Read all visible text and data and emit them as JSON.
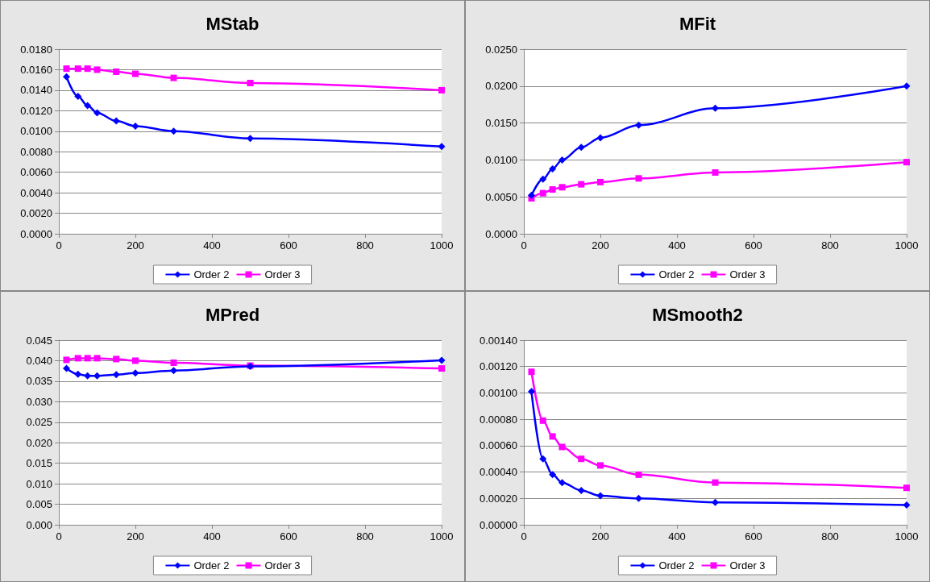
{
  "chart_data": [
    {
      "type": "line",
      "title": "MStab",
      "x": [
        20,
        50,
        75,
        100,
        150,
        200,
        300,
        500,
        1000
      ],
      "xlim": [
        0,
        1000
      ],
      "xticks": [
        0,
        200,
        400,
        600,
        800,
        1000
      ],
      "ylim": [
        0,
        0.018
      ],
      "yticks": [
        {
          "value": 0,
          "label": "0.0000"
        },
        {
          "value": 0.002,
          "label": "0.0020"
        },
        {
          "value": 0.004,
          "label": "0.0040"
        },
        {
          "value": 0.006,
          "label": "0.0060"
        },
        {
          "value": 0.008,
          "label": "0.0080"
        },
        {
          "value": 0.01,
          "label": "0.0100"
        },
        {
          "value": 0.012,
          "label": "0.0120"
        },
        {
          "value": 0.014,
          "label": "0.0140"
        },
        {
          "value": 0.016,
          "label": "0.0160"
        },
        {
          "value": 0.018,
          "label": "0.0180"
        }
      ],
      "grid": "y",
      "legend": "bottom",
      "series": [
        {
          "name": "Order 2",
          "color": "#0000ff",
          "marker": "diamond",
          "values": [
            0.0153,
            0.0134,
            0.0125,
            0.0118,
            0.011,
            0.0105,
            0.01,
            0.0093,
            0.0085
          ]
        },
        {
          "name": "Order 3",
          "color": "#ff00ff",
          "marker": "square",
          "values": [
            0.0161,
            0.0161,
            0.0161,
            0.016,
            0.0158,
            0.0156,
            0.0152,
            0.0147,
            0.014
          ]
        }
      ]
    },
    {
      "type": "line",
      "title": "MFit",
      "x": [
        20,
        50,
        75,
        100,
        150,
        200,
        300,
        500,
        1000
      ],
      "xlim": [
        0,
        1000
      ],
      "xticks": [
        0,
        200,
        400,
        600,
        800,
        1000
      ],
      "ylim": [
        0,
        0.025
      ],
      "yticks": [
        {
          "value": 0,
          "label": "0.0000"
        },
        {
          "value": 0.005,
          "label": "0.0050"
        },
        {
          "value": 0.01,
          "label": "0.0100"
        },
        {
          "value": 0.015,
          "label": "0.0150"
        },
        {
          "value": 0.02,
          "label": "0.0200"
        },
        {
          "value": 0.025,
          "label": "0.0250"
        }
      ],
      "grid": "y",
      "legend": "bottom",
      "series": [
        {
          "name": "Order 2",
          "color": "#0000ff",
          "marker": "diamond",
          "values": [
            0.0052,
            0.0074,
            0.0088,
            0.01,
            0.0117,
            0.013,
            0.0147,
            0.017,
            0.02
          ]
        },
        {
          "name": "Order 3",
          "color": "#ff00ff",
          "marker": "square",
          "values": [
            0.0048,
            0.0055,
            0.006,
            0.0063,
            0.0067,
            0.007,
            0.0075,
            0.0083,
            0.0097
          ]
        }
      ]
    },
    {
      "type": "line",
      "title": "MPred",
      "x": [
        20,
        50,
        75,
        100,
        150,
        200,
        300,
        500,
        1000
      ],
      "xlim": [
        0,
        1000
      ],
      "xticks": [
        0,
        200,
        400,
        600,
        800,
        1000
      ],
      "ylim": [
        0,
        0.045
      ],
      "yticks": [
        {
          "value": 0,
          "label": "0.000"
        },
        {
          "value": 0.005,
          "label": "0.005"
        },
        {
          "value": 0.01,
          "label": "0.010"
        },
        {
          "value": 0.015,
          "label": "0.015"
        },
        {
          "value": 0.02,
          "label": "0.020"
        },
        {
          "value": 0.025,
          "label": "0.025"
        },
        {
          "value": 0.03,
          "label": "0.030"
        },
        {
          "value": 0.035,
          "label": "0.035"
        },
        {
          "value": 0.04,
          "label": "0.040"
        },
        {
          "value": 0.045,
          "label": "0.045"
        }
      ],
      "grid": "y",
      "legend": "bottom",
      "series": [
        {
          "name": "Order 2",
          "color": "#0000ff",
          "marker": "diamond",
          "values": [
            0.0381,
            0.0367,
            0.0363,
            0.0363,
            0.0366,
            0.037,
            0.0376,
            0.0386,
            0.0401
          ]
        },
        {
          "name": "Order 3",
          "color": "#ff00ff",
          "marker": "square",
          "values": [
            0.0402,
            0.0406,
            0.0406,
            0.0406,
            0.0404,
            0.04,
            0.0395,
            0.0388,
            0.0381
          ]
        }
      ]
    },
    {
      "type": "line",
      "title": "MSmooth2",
      "x": [
        20,
        50,
        75,
        100,
        150,
        200,
        300,
        500,
        1000
      ],
      "xlim": [
        0,
        1000
      ],
      "xticks": [
        0,
        200,
        400,
        600,
        800,
        1000
      ],
      "ylim": [
        0,
        0.0014
      ],
      "yticks": [
        {
          "value": 0,
          "label": "0.00000"
        },
        {
          "value": 0.0002,
          "label": "0.00020"
        },
        {
          "value": 0.0004,
          "label": "0.00040"
        },
        {
          "value": 0.0006,
          "label": "0.00060"
        },
        {
          "value": 0.0008,
          "label": "0.00080"
        },
        {
          "value": 0.001,
          "label": "0.00100"
        },
        {
          "value": 0.0012,
          "label": "0.00120"
        },
        {
          "value": 0.0014,
          "label": "0.00140"
        }
      ],
      "grid": "y",
      "legend": "bottom",
      "series": [
        {
          "name": "Order 2",
          "color": "#0000ff",
          "marker": "diamond",
          "values": [
            0.00101,
            0.0005,
            0.00038,
            0.00032,
            0.00026,
            0.00022,
            0.0002,
            0.00017,
            0.00015
          ]
        },
        {
          "name": "Order 3",
          "color": "#ff00ff",
          "marker": "square",
          "values": [
            0.00116,
            0.00079,
            0.00067,
            0.00059,
            0.0005,
            0.00045,
            0.00038,
            0.00032,
            0.00028
          ]
        }
      ]
    }
  ]
}
